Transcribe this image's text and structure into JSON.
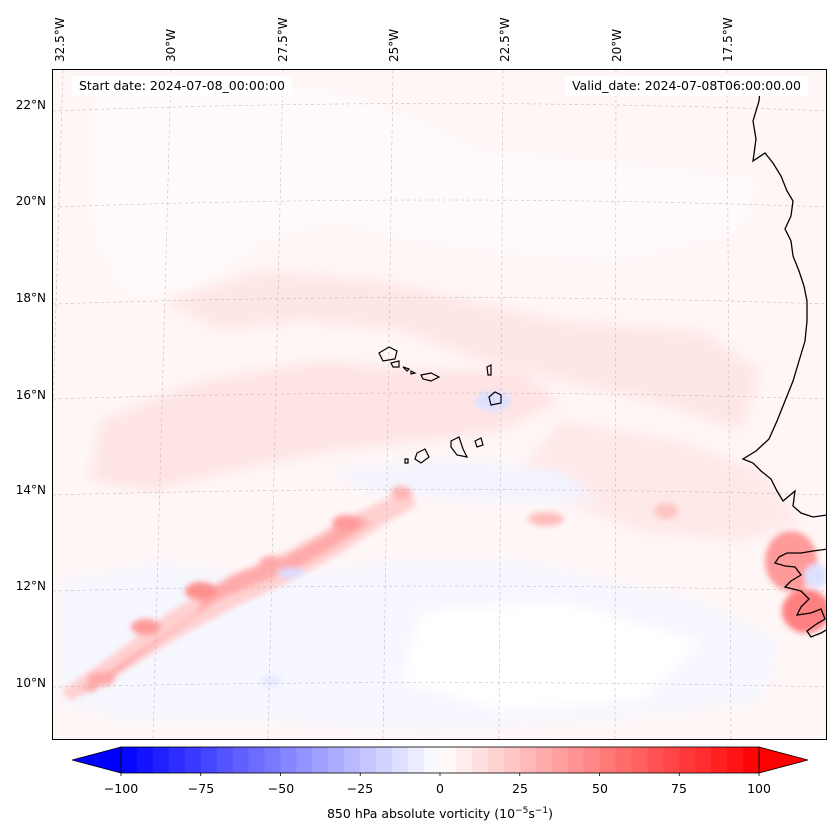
{
  "map": {
    "start_date": "Start date: 2024-07-08_00:00:00",
    "valid_date": "Valid_date: 2024-07-08T06:00:00.00",
    "lon_labels": [
      "32.5°W",
      "30°W",
      "27.5°W",
      "25°W",
      "22.5°W",
      "20°W",
      "17.5°W"
    ],
    "lat_labels": [
      "22°N",
      "20°N",
      "18°N",
      "16°N",
      "14°N",
      "12°N",
      "10°N"
    ],
    "colors": {
      "coastline": "#000000",
      "gridline": "#b0b0b0",
      "ocean_base": "#fff6f6",
      "negative_max": "#0000ff",
      "positive_max": "#ff0000"
    }
  },
  "colorbar": {
    "ticks": [
      "−100",
      "−75",
      "−50",
      "−25",
      "0",
      "25",
      "50",
      "75",
      "100"
    ],
    "label": "850 hPa absolute vorticity (10",
    "label_exp1": "−5",
    "label_mid": "s",
    "label_exp2": "−1",
    "label_end": ")",
    "vmin": -100,
    "vmax": 100,
    "levels": 41
  }
}
